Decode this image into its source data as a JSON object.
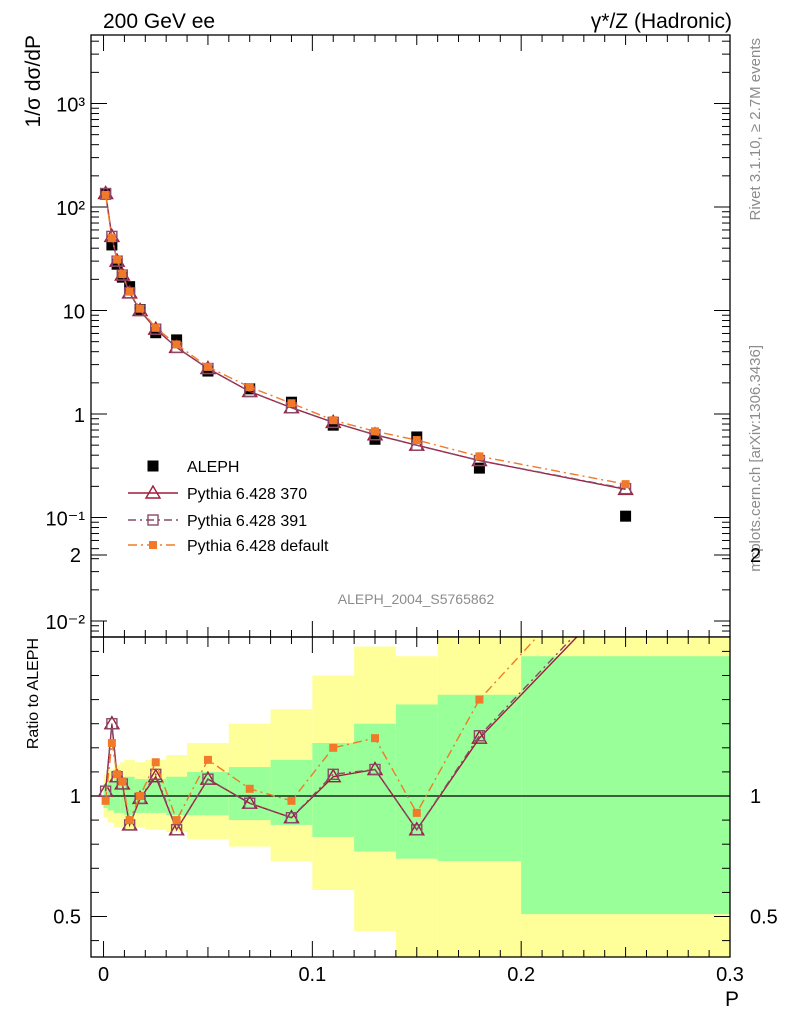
{
  "header": {
    "left_title": "200 GeV ee",
    "right_title": "γ*/Z (Hadronic)"
  },
  "side_labels": {
    "rivet": "Rivet 3.1.10, ≥ 2.7M events",
    "mcplots": "mcplots.cern.ch [arXiv:1306.3436]"
  },
  "analysis_tag": "ALEPH_2004_S5765862",
  "colors": {
    "data": "#000000",
    "pythia370": "#a01c3a",
    "pythia391": "#8a4a6a",
    "pythia_default": "#f07a2a",
    "band_inner": "#99ff99",
    "band_outer": "#ffff99"
  },
  "chart_data": [
    {
      "type": "scatter",
      "panel": "main",
      "ylabel": "1/σ  dσ/dP",
      "log_y": true,
      "ylim": [
        0.008,
        5000
      ],
      "xlim": [
        -0.006,
        0.3
      ],
      "ytick_labels": [
        "10⁻²",
        "10⁻¹",
        "1",
        "10",
        "10²",
        "10³"
      ],
      "x": [
        0.001,
        0.004,
        0.0065,
        0.009,
        0.0125,
        0.0175,
        0.025,
        0.035,
        0.05,
        0.07,
        0.09,
        0.11,
        0.13,
        0.15,
        0.18,
        0.25
      ],
      "series": [
        {
          "name": "ALEPH",
          "key": "data",
          "values": [
            133,
            43,
            28,
            21,
            17,
            10.2,
            6.1,
            5.2,
            2.6,
            1.75,
            1.3,
            0.78,
            0.57,
            0.6,
            0.3,
            0.103
          ]
        },
        {
          "name": "Pythia 6.428 370",
          "key": "p370",
          "values": [
            135,
            52,
            30,
            22,
            14.8,
            10.0,
            6.6,
            4.4,
            2.75,
            1.65,
            1.15,
            0.83,
            0.63,
            0.5,
            0.355,
            0.187
          ]
        },
        {
          "name": "Pythia 6.428 391",
          "key": "p391",
          "values": [
            135,
            52,
            30,
            22,
            14.8,
            10.0,
            6.6,
            4.4,
            2.75,
            1.65,
            1.15,
            0.83,
            0.63,
            0.5,
            0.355,
            0.19
          ]
        },
        {
          "name": "Pythia 6.428 default",
          "key": "pdef",
          "values": [
            131,
            50,
            31,
            22.5,
            15.2,
            10.4,
            6.8,
            4.7,
            2.85,
            1.82,
            1.27,
            0.87,
            0.68,
            0.56,
            0.39,
            0.21
          ]
        }
      ],
      "legend_position": "lower-left"
    },
    {
      "type": "line",
      "panel": "ratio",
      "xlabel": "P",
      "ylabel": "Ratio to ALEPH",
      "ylim": [
        0.35,
        2.3
      ],
      "xlim": [
        -0.006,
        0.3
      ],
      "xtick_labels": [
        "0",
        "0.1",
        "0.2",
        "0.3"
      ],
      "ytick_labels": [
        "0.5",
        "1",
        "2"
      ],
      "x": [
        0.001,
        0.004,
        0.0065,
        0.009,
        0.0125,
        0.0175,
        0.025,
        0.035,
        0.05,
        0.07,
        0.09,
        0.11,
        0.13,
        0.15,
        0.18,
        0.25
      ],
      "bin_edges": [
        0,
        0.002,
        0.005,
        0.008,
        0.01,
        0.015,
        0.02,
        0.03,
        0.04,
        0.06,
        0.08,
        0.1,
        0.12,
        0.14,
        0.16,
        0.2,
        0.3
      ],
      "band_inner": {
        "lo": [
          0.95,
          0.94,
          0.93,
          0.93,
          0.92,
          0.93,
          0.93,
          0.92,
          0.92,
          0.9,
          0.88,
          0.83,
          0.77,
          0.74,
          0.73,
          0.51
        ],
        "hi": [
          1.05,
          1.06,
          1.07,
          1.07,
          1.08,
          1.07,
          1.07,
          1.08,
          1.1,
          1.12,
          1.15,
          1.22,
          1.3,
          1.38,
          1.42,
          1.58
        ]
      },
      "band_outer": {
        "lo": [
          0.91,
          0.89,
          0.87,
          0.87,
          0.86,
          0.87,
          0.86,
          0.85,
          0.82,
          0.79,
          0.73,
          0.61,
          0.44,
          0.33,
          0.33,
          0.33
        ],
        "hi": [
          1.09,
          1.11,
          1.13,
          1.14,
          1.15,
          1.14,
          1.15,
          1.17,
          1.22,
          1.3,
          1.36,
          1.5,
          1.62,
          1.58,
          1.68,
          1.98
        ]
      },
      "series": [
        {
          "name": "Pythia 6.428 370",
          "key": "p370",
          "values": [
            1.02,
            1.3,
            1.08,
            1.05,
            0.88,
            0.99,
            1.08,
            0.86,
            1.07,
            0.97,
            0.91,
            1.08,
            1.11,
            0.86,
            1.24,
            1.87
          ]
        },
        {
          "name": "Pythia 6.428 391",
          "key": "p391",
          "values": [
            1.02,
            1.3,
            1.08,
            1.05,
            0.88,
            0.99,
            1.09,
            0.86,
            1.07,
            0.97,
            0.91,
            1.09,
            1.11,
            0.86,
            1.25,
            1.89
          ]
        },
        {
          "name": "Pythia 6.428 default",
          "key": "pdef",
          "values": [
            0.98,
            1.22,
            1.09,
            1.06,
            0.9,
            1.0,
            1.14,
            0.9,
            1.15,
            1.03,
            0.98,
            1.2,
            1.24,
            0.93,
            1.4,
            2.06
          ]
        }
      ]
    }
  ]
}
